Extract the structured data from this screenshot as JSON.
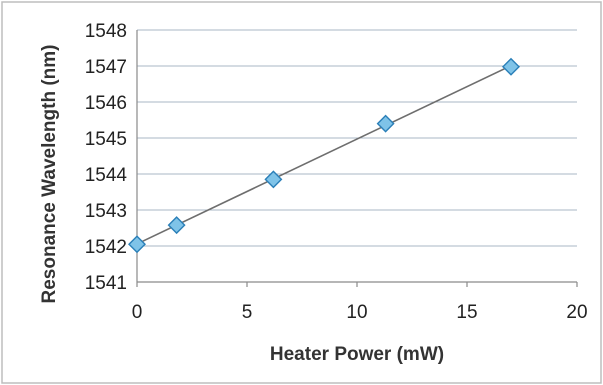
{
  "chart_data": {
    "type": "scatter",
    "xlabel": "Heater Power (mW)",
    "ylabel": "Resonance Wavelength (nm)",
    "xlim": [
      0,
      20
    ],
    "ylim": [
      1541,
      1548
    ],
    "x_ticks": [
      "0",
      "5",
      "10",
      "15",
      "20"
    ],
    "y_ticks": [
      "1541",
      "1542",
      "1543",
      "1544",
      "1545",
      "1546",
      "1547",
      "1548"
    ],
    "grid": "horizontal",
    "trendline": "linear",
    "legend": "none",
    "marker": "diamond",
    "series": [
      {
        "x": [
          0,
          1.8,
          6.2,
          11.3,
          17.0
        ],
        "y": [
          1542.05,
          1542.58,
          1543.85,
          1545.4,
          1546.98
        ]
      }
    ],
    "colors": {
      "marker_fill": "#7fc3e8",
      "marker_stroke": "#2a7fb8",
      "trendline": "#6e6e6e",
      "grid": "#a9b7c6"
    }
  }
}
